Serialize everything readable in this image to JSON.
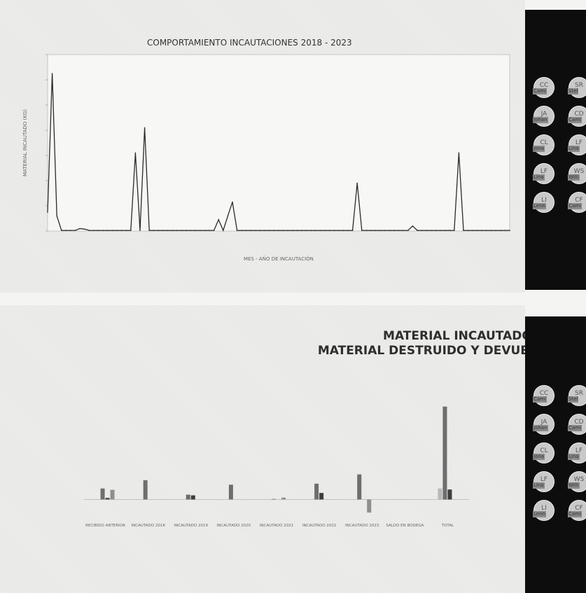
{
  "chart_data": [
    {
      "type": "line",
      "title": "COMPORTAMIENTO INCAUTACIONES 2018 - 2023",
      "ylabel": "MATERIAL INCAUTADO (KG)",
      "xlabel": "MES - AÑO DE INCAUTACIÓN",
      "ylim": [
        0,
        1400
      ],
      "series": [
        {
          "values": [
            150,
            1250,
            120,
            5,
            5,
            5,
            5,
            20,
            15,
            5,
            5,
            5,
            5,
            5,
            5,
            5,
            5,
            5,
            5,
            620,
            5,
            820,
            5,
            5,
            5,
            5,
            5,
            5,
            5,
            5,
            5,
            5,
            5,
            5,
            5,
            5,
            5,
            90,
            5,
            120,
            230,
            5,
            5,
            5,
            5,
            5,
            5,
            5,
            5,
            5,
            5,
            5,
            5,
            5,
            5,
            5,
            5,
            5,
            5,
            5,
            5,
            5,
            5,
            5,
            5,
            5,
            5,
            380,
            5,
            5,
            5,
            5,
            5,
            5,
            5,
            5,
            5,
            5,
            5,
            40,
            5,
            5,
            5,
            5,
            5,
            5,
            5,
            5,
            5,
            620,
            5,
            5,
            5,
            5,
            5,
            5,
            5,
            5,
            5,
            5,
            5
          ]
        }
      ]
    },
    {
      "type": "bar",
      "title": "MATERIAL INCAUTADO  Vs\nMATERIAL DESTRUIDO Y DEVUELTO",
      "categories": [
        "RECIBIDO ANTERIOR",
        "INCAUTADO 2018",
        "INCAUTADO 2019",
        "INCAUTADO 2020",
        "INCAUTADO 2021",
        "INCAUTADO 2022",
        "INCAUTADO 2023",
        "SALDO EN BODEGA",
        "TOTAL"
      ],
      "series": [
        {
          "name": "",
          "values": [
            0,
            0,
            0,
            0,
            0,
            0,
            0,
            0,
            3200
          ],
          "color": "#b8b8b8"
        },
        {
          "name": "",
          "values": [
            3200,
            5600,
            1400,
            4300,
            150,
            4600,
            7300,
            0,
            27000
          ],
          "color": "#6e6e6e"
        },
        {
          "name": "",
          "values": [
            450,
            0,
            1200,
            0,
            0,
            1900,
            0,
            0,
            2900
          ],
          "color": "#3e3e3e"
        },
        {
          "name": "",
          "values": [
            2800,
            0,
            0,
            0,
            550,
            0,
            -3800,
            0,
            0
          ],
          "color": "#8f8f8f"
        }
      ]
    }
  ],
  "user_avatars": [
    {
      "initials": "CC",
      "name": "Cami"
    },
    {
      "initials": "SR",
      "name": "Stel"
    },
    {
      "initials": "JA",
      "name": "Johan"
    },
    {
      "initials": "CD",
      "name": "Cami"
    },
    {
      "initials": "CL",
      "name": "Jona"
    },
    {
      "initials": "LF",
      "name": "Lina"
    },
    {
      "initials": "LF",
      "name": "Lina"
    },
    {
      "initials": "WS",
      "name": "Willi"
    },
    {
      "initials": "LI",
      "name": "Lenn"
    },
    {
      "initials": "CF",
      "name": "Cami"
    }
  ]
}
